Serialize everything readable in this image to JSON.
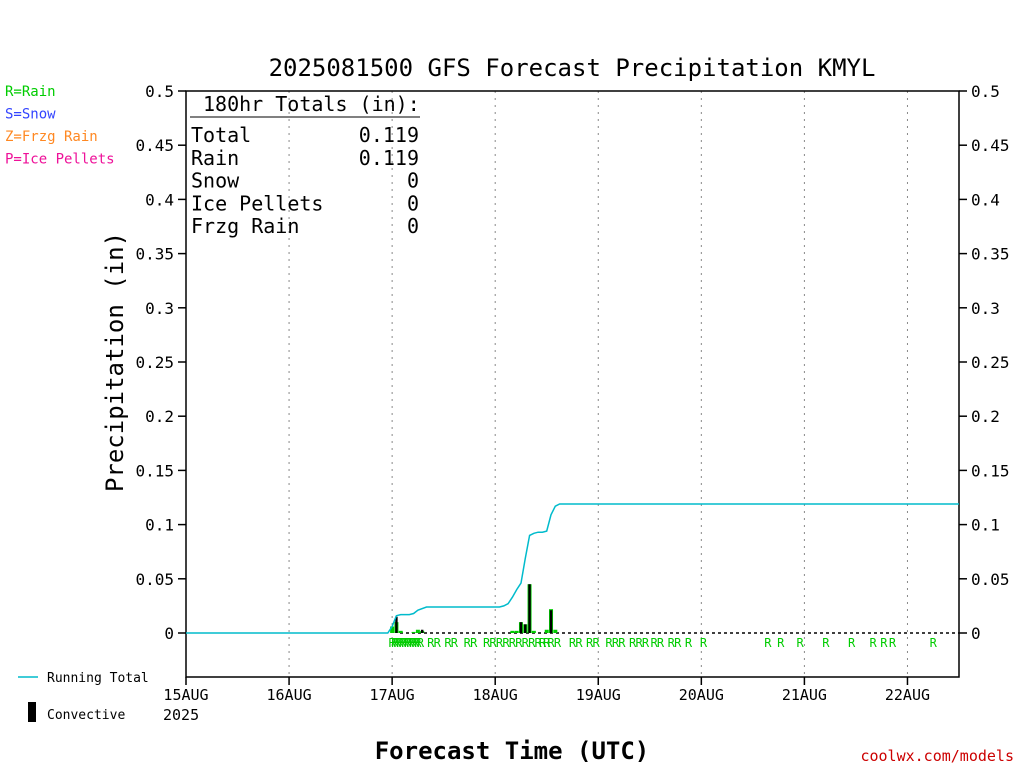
{
  "chart_data": {
    "type": "bar",
    "title": "2025081500 GFS Forecast Precipitation KMYL",
    "xlabel": "Forecast Time (UTC)",
    "ylabel": "Precipitation (in)",
    "ylim": [
      0,
      0.5
    ],
    "y_ticks": [
      "0",
      "0.05",
      "0.1",
      "0.15",
      "0.2",
      "0.25",
      "0.3",
      "0.35",
      "0.4",
      "0.45",
      "0.5"
    ],
    "x_range_hours": [
      0,
      180
    ],
    "x_ticks": [
      {
        "label": "15AUG",
        "hour": 0
      },
      {
        "label": "16AUG",
        "hour": 24
      },
      {
        "label": "17AUG",
        "hour": 48
      },
      {
        "label": "18AUG",
        "hour": 72
      },
      {
        "label": "19AUG",
        "hour": 96
      },
      {
        "label": "20AUG",
        "hour": 120
      },
      {
        "label": "21AUG",
        "hour": 144
      },
      {
        "label": "22AUG",
        "hour": 168
      }
    ],
    "year_label": "2025",
    "grid": "vertical dotted",
    "precip_type_legend": [
      {
        "text": "R=Rain",
        "color": "#00cc00"
      },
      {
        "text": "S=Snow",
        "color": "#3344ff"
      },
      {
        "text": "Z=Frzg Rain",
        "color": "#ff8822"
      },
      {
        "text": "P=Ice Pellets",
        "color": "#ee1199"
      }
    ],
    "series_legend": {
      "running_total": {
        "label": "Running Total",
        "color": "#00bbcc"
      },
      "convective": {
        "label": "Convective",
        "color": "#000000"
      }
    },
    "totals": {
      "header": "180hr Totals (in):",
      "rows": [
        {
          "label": "Total",
          "value": "0.119"
        },
        {
          "label": "Rain",
          "value": "0.119"
        },
        {
          "label": "Snow",
          "value": "0"
        },
        {
          "label": "Ice Pellets",
          "value": "0"
        },
        {
          "label": "Frzg Rain",
          "value": "0"
        }
      ]
    },
    "rain_bars": [
      {
        "hour": 48,
        "value": 0.006
      },
      {
        "hour": 49,
        "value": 0.01
      },
      {
        "hour": 50,
        "value": 0.002
      },
      {
        "hour": 53,
        "value": 0.001
      },
      {
        "hour": 54,
        "value": 0.003
      },
      {
        "hour": 55,
        "value": 0.002
      },
      {
        "hour": 76,
        "value": 0.002
      },
      {
        "hour": 77,
        "value": 0.002
      },
      {
        "hour": 78,
        "value": 0.01
      },
      {
        "hour": 79,
        "value": 0.008
      },
      {
        "hour": 80,
        "value": 0.045
      },
      {
        "hour": 81,
        "value": 0.002
      },
      {
        "hour": 84,
        "value": 0.003
      },
      {
        "hour": 85,
        "value": 0.022
      },
      {
        "hour": 86,
        "value": 0.003
      }
    ],
    "convective_bars": [
      {
        "hour": 49,
        "value": 0.015
      },
      {
        "hour": 55,
        "value": 0.003
      },
      {
        "hour": 78,
        "value": 0.01
      },
      {
        "hour": 79,
        "value": 0.008
      },
      {
        "hour": 80,
        "value": 0.045
      },
      {
        "hour": 85,
        "value": 0.021
      }
    ],
    "running_total": {
      "x_hours": [
        0,
        47,
        48,
        49,
        50,
        52,
        53,
        54,
        56,
        58,
        70,
        73,
        74,
        75,
        76,
        77,
        78,
        79,
        80,
        81,
        82,
        83,
        84,
        85,
        86,
        87,
        180
      ],
      "values": [
        0,
        0,
        0.006,
        0.016,
        0.017,
        0.017,
        0.018,
        0.021,
        0.024,
        0.024,
        0.024,
        0.024,
        0.025,
        0.027,
        0.033,
        0.04,
        0.046,
        0.069,
        0.09,
        0.092,
        0.093,
        0.093,
        0.094,
        0.109,
        0.117,
        0.119,
        0.119
      ]
    },
    "rain_type_hours": [
      48,
      48.6,
      49.2,
      49.8,
      50.4,
      51,
      51.6,
      52.2,
      52.8,
      53.4,
      54,
      54.6,
      57,
      58.5,
      61,
      62.5,
      65.5,
      67,
      70,
      71.5,
      73,
      74.5,
      76,
      77.5,
      79,
      80.5,
      82,
      83,
      84,
      85,
      86.5,
      90,
      91.5,
      94,
      95.5,
      98.5,
      100,
      101.5,
      104,
      105.5,
      107,
      109,
      110.5,
      113,
      114.5,
      117,
      120.5,
      135.5,
      138.5,
      143,
      149,
      155,
      160,
      162.5,
      164.5,
      174
    ],
    "rain_type_letter": "R",
    "credit": "coolwx.com/models"
  }
}
